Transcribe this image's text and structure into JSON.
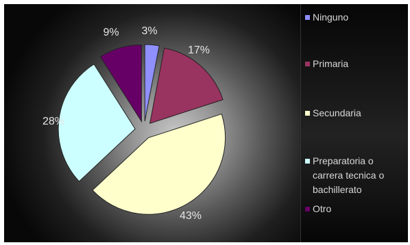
{
  "chart_data": {
    "type": "pie",
    "exploded": true,
    "legend_position": "right",
    "slices": [
      {
        "label": "Ninguno",
        "value": 3,
        "display": "3%",
        "color": "#8f8fff"
      },
      {
        "label": "Primaria",
        "value": 17,
        "display": "17%",
        "color": "#99335f"
      },
      {
        "label": "Secundaria",
        "value": 43,
        "display": "43%",
        "color": "#ffffcc"
      },
      {
        "label": "Preparatoria o carrera tecnica o bachillerato",
        "legend_lines": [
          "Preparatoria o",
          "carrera tecnica o",
          "bachillerato"
        ],
        "value": 28,
        "display": "28%",
        "color": "#ccffff"
      },
      {
        "label": "Otro",
        "value": 9,
        "display": "9%",
        "color": "#660066"
      }
    ]
  }
}
